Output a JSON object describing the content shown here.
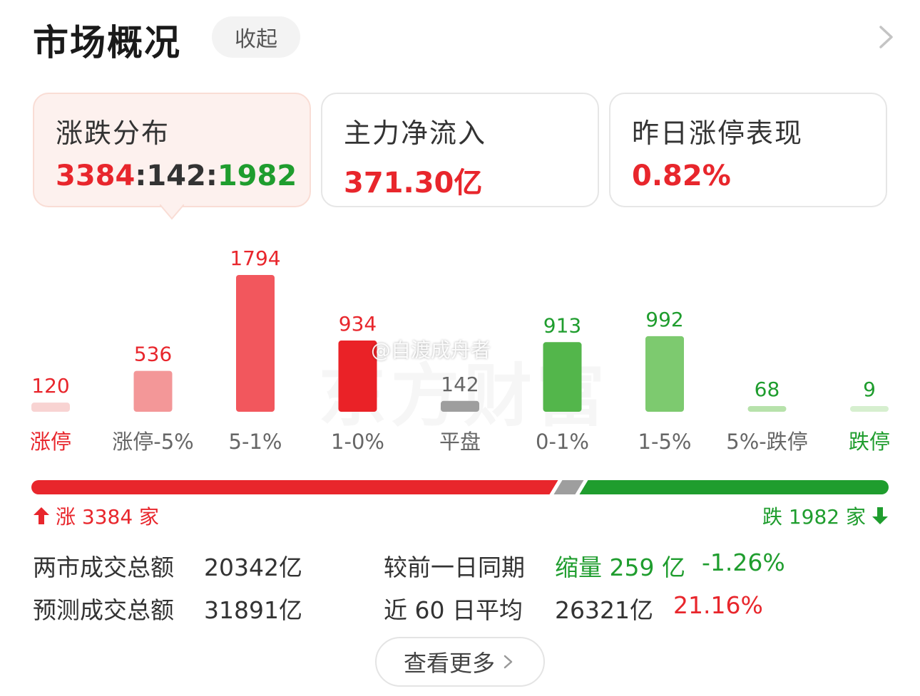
{
  "header": {
    "title": "市场概况",
    "collapse_label": "收起"
  },
  "cards": {
    "distribution": {
      "label": "涨跌分布",
      "up": "3384",
      "flat": "142",
      "down": "1982",
      "sep": ":"
    },
    "main_inflow": {
      "label": "主力净流入",
      "value": "371.30亿"
    },
    "limit_up_perf": {
      "label": "昨日涨停表现",
      "value": "0.82%"
    }
  },
  "chart_data": {
    "type": "bar",
    "categories": [
      "涨停",
      "涨停-5%",
      "5-1%",
      "1-0%",
      "平盘",
      "0-1%",
      "1-5%",
      "5%-跌停",
      "跌停"
    ],
    "values": [
      120,
      536,
      1794,
      934,
      142,
      913,
      992,
      68,
      9
    ],
    "colors": [
      "#f8d3d2",
      "#f39798",
      "#f2575d",
      "#ea2227",
      "#9e9e9e",
      "#53b64b",
      "#7dca6f",
      "#b7e2ab",
      "#d6efcf"
    ],
    "label_colors": [
      "#e8262c",
      "#e8262c",
      "#e8262c",
      "#e8262c",
      "#666666",
      "#1f9d2e",
      "#1f9d2e",
      "#1f9d2e",
      "#1f9d2e"
    ],
    "category_colors": [
      "#e8262c",
      "#666666",
      "#666666",
      "#666666",
      "#666666",
      "#666666",
      "#666666",
      "#666666",
      "#1f9d2e"
    ]
  },
  "watermark": {
    "text": "@自渡成舟者",
    "logo_text": "东方财富"
  },
  "ratio": {
    "up": 3384,
    "flat": 142,
    "down": 1982,
    "up_label": "涨 3384 家",
    "down_label": "跌 1982 家"
  },
  "stats": {
    "total_volume_label": "两市成交总额",
    "total_volume": "20342亿",
    "compare_label": "较前一日同期",
    "compare_change": "缩量 259 亿",
    "compare_pct": "-1.26%",
    "forecast_label": "预测成交总额",
    "forecast_value": "31891亿",
    "avg60_label": "近 60 日平均",
    "avg60_value": "26321亿",
    "avg60_pct": "21.16%"
  },
  "more_label": "查看更多",
  "colors": {
    "red": "#e8262c",
    "green": "#1f9d2e",
    "gray": "#9e9e9e"
  }
}
